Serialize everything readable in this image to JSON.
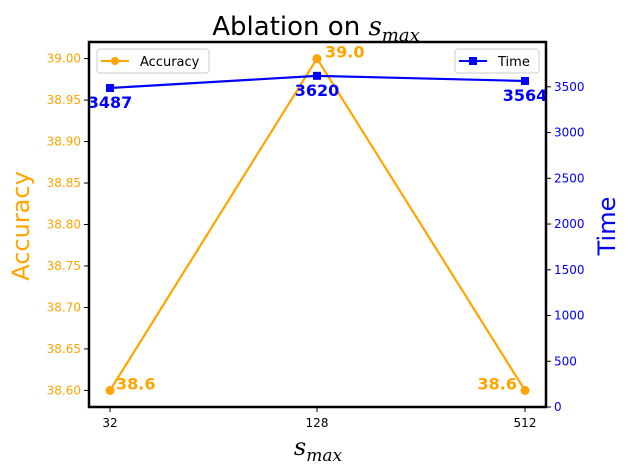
{
  "chart_data": {
    "type": "line",
    "title": {
      "text": "Ablation on ",
      "math": "s",
      "sub": "max"
    },
    "xlabel": {
      "math": "s",
      "sub": "max"
    },
    "categories": [
      "32",
      "128",
      "512"
    ],
    "y_left": {
      "label": "Accuracy",
      "color": "#FFA500",
      "ylim": [
        38.58,
        39.02
      ],
      "ticks": [
        "38.60",
        "38.65",
        "38.70",
        "38.75",
        "38.80",
        "38.85",
        "38.90",
        "38.95",
        "39.00"
      ]
    },
    "y_right": {
      "label": "Time",
      "color": "#0000FF",
      "ylim": [
        0,
        3990
      ],
      "ticks": [
        "0",
        "500",
        "1000",
        "1500",
        "2000",
        "2500",
        "3000",
        "3500"
      ]
    },
    "series": [
      {
        "name": "Accuracy",
        "axis": "left",
        "marker": "circle",
        "color": "#FFA500",
        "values": [
          38.6,
          39.0,
          38.6
        ],
        "labels": [
          "38.6",
          "39.0",
          "38.6"
        ]
      },
      {
        "name": "Time",
        "axis": "right",
        "marker": "square",
        "color": "#0000FF",
        "values": [
          3487,
          3620,
          3564
        ],
        "labels": [
          "3487",
          "3620",
          "3564"
        ]
      }
    ],
    "legends": {
      "left": "top-left",
      "right": "top-right"
    },
    "grid": false
  }
}
